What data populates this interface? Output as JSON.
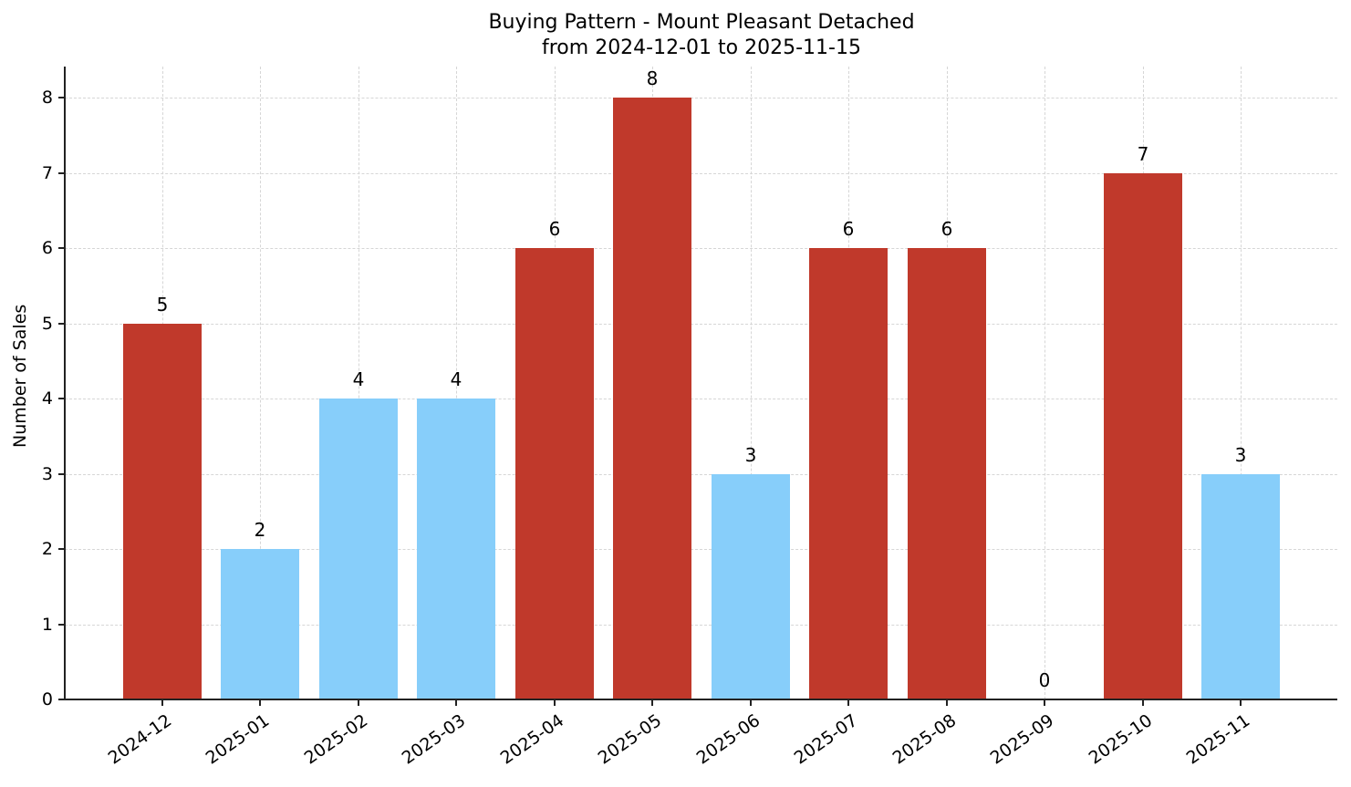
{
  "chart_data": {
    "type": "bar",
    "title": "Buying Pattern - Mount Pleasant Detached",
    "subtitle": "from 2024-12-01 to 2025-11-15",
    "xlabel": "",
    "ylabel": "Number of Sales",
    "ylim": [
      0,
      8.4
    ],
    "yticks": [
      0,
      1,
      2,
      3,
      4,
      5,
      6,
      7,
      8
    ],
    "grid": true,
    "legend": null,
    "categories": [
      "2024-12",
      "2025-01",
      "2025-02",
      "2025-03",
      "2025-04",
      "2025-05",
      "2025-06",
      "2025-07",
      "2025-08",
      "2025-09",
      "2025-10",
      "2025-11"
    ],
    "values": [
      5,
      2,
      4,
      4,
      6,
      8,
      3,
      6,
      6,
      0,
      7,
      3
    ],
    "bar_colors": [
      "#c0392b",
      "#87cefa",
      "#87cefa",
      "#87cefa",
      "#c0392b",
      "#c0392b",
      "#87cefa",
      "#c0392b",
      "#c0392b",
      "#87cefa",
      "#c0392b",
      "#87cefa"
    ],
    "color_legend": {
      "high": "#c0392b",
      "low": "#87cefa"
    },
    "value_labels": [
      "5",
      "2",
      "4",
      "4",
      "6",
      "8",
      "3",
      "6",
      "6",
      "0",
      "7",
      "3"
    ]
  },
  "header": {
    "title": "Buying Pattern - Mount Pleasant Detached",
    "subtitle": "from 2024-12-01 to 2025-11-15"
  },
  "axes": {
    "ylabel": "Number of Sales",
    "yticks": [
      "0",
      "1",
      "2",
      "3",
      "4",
      "5",
      "6",
      "7",
      "8"
    ]
  }
}
